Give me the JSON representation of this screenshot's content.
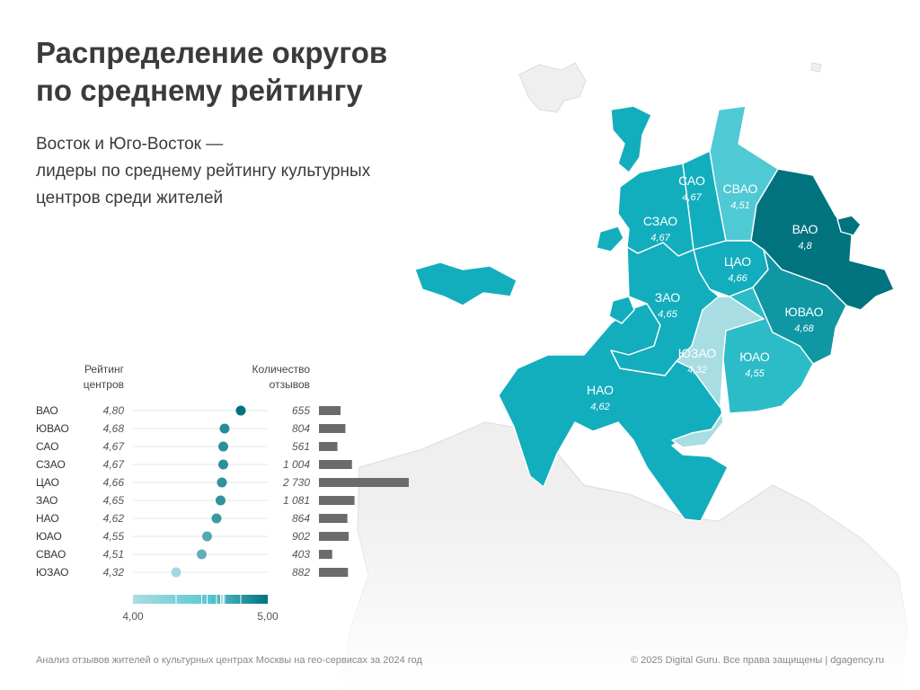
{
  "title": {
    "line1": "Распределение округов",
    "line2": "по среднему рейтингу"
  },
  "subtitle": {
    "line1": "Восток и Юго-Восток —",
    "line2": "лидеры по среднему рейтингу культурных",
    "line3": "центров среди жителей"
  },
  "chart_data": [
    {
      "type": "scatter",
      "subtype": "dot-plot with bar column",
      "rating_header": [
        "Рейтинг",
        "центров"
      ],
      "reviews_header": [
        "Количество",
        "отзывов"
      ],
      "xlim": [
        4.0,
        5.0
      ],
      "x_ticks": [
        "4,00",
        "5,00"
      ],
      "colorbar": {
        "min": 4.0,
        "max": 5.0,
        "low_color": "#a8dde3",
        "high_color": "#00737f"
      },
      "grid": true,
      "rows": [
        {
          "district": "ВАО",
          "rating": 4.8,
          "rating_label": "4,80",
          "reviews": 655,
          "reviews_label": "655"
        },
        {
          "district": "ЮВАО",
          "rating": 4.68,
          "rating_label": "4,68",
          "reviews": 804,
          "reviews_label": "804"
        },
        {
          "district": "САО",
          "rating": 4.67,
          "rating_label": "4,67",
          "reviews": 561,
          "reviews_label": "561"
        },
        {
          "district": "СЗАО",
          "rating": 4.67,
          "rating_label": "4,67",
          "reviews": 1004,
          "reviews_label": "1 004"
        },
        {
          "district": "ЦАО",
          "rating": 4.66,
          "rating_label": "4,66",
          "reviews": 2730,
          "reviews_label": "2 730"
        },
        {
          "district": "ЗАО",
          "rating": 4.65,
          "rating_label": "4,65",
          "reviews": 1081,
          "reviews_label": "1 081"
        },
        {
          "district": "НАО",
          "rating": 4.62,
          "rating_label": "4,62",
          "reviews": 864,
          "reviews_label": "864"
        },
        {
          "district": "ЮАО",
          "rating": 4.55,
          "rating_label": "4,55",
          "reviews": 902,
          "reviews_label": "902"
        },
        {
          "district": "СВАО",
          "rating": 4.51,
          "rating_label": "4,51",
          "reviews": 403,
          "reviews_label": "403"
        },
        {
          "district": "ЮЗАО",
          "rating": 4.32,
          "rating_label": "4,32",
          "reviews": 882,
          "reviews_label": "882"
        }
      ]
    },
    {
      "type": "choropleth",
      "regions": [
        {
          "name": "САО",
          "value": 4.67,
          "label": "4,67"
        },
        {
          "name": "СВАО",
          "value": 4.51,
          "label": "4,51"
        },
        {
          "name": "ВАО",
          "value": 4.8,
          "label": "4,8"
        },
        {
          "name": "СЗАО",
          "value": 4.67,
          "label": "4,67"
        },
        {
          "name": "ЦАО",
          "value": 4.66,
          "label": "4,66"
        },
        {
          "name": "ЗАО",
          "value": 4.65,
          "label": "4,65"
        },
        {
          "name": "ЮВАО",
          "value": 4.68,
          "label": "4,68"
        },
        {
          "name": "ЮЗАО",
          "value": 4.32,
          "label": "4,32"
        },
        {
          "name": "ЮАО",
          "value": 4.55,
          "label": "4,55"
        },
        {
          "name": "НАО",
          "value": 4.62,
          "label": "4,62"
        }
      ]
    }
  ],
  "footer": {
    "left": "Анализ отзывов жителей о культурных центрах Москвы на гео-сервисах за 2024 год",
    "right": "© 2025 Digital Guru. Все права защищены | dgagency.ru"
  },
  "colors": {
    "title": "#3b3b3b",
    "dot_low": "#a8dde3",
    "dot_high": "#00737f",
    "bar": "#6b6b6b",
    "background_land": "#f0f0f0"
  }
}
